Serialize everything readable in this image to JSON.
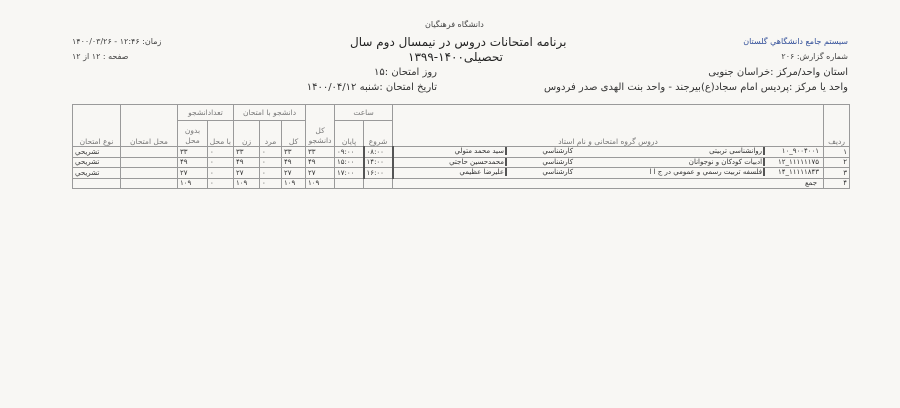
{
  "header": {
    "system_name": "سیستم جامع دانشگاهي گلستان",
    "report_number": "شماره گزارش: ۲۰۶",
    "university": "دانشگاه فرهنگیان",
    "title_line1": "برنامه امتحانات دروس در نیمسال دوم سال",
    "title_line2": "تحصیلی۱۴۰۰-۱۳۹۹",
    "time": "زمان: ۱۲:۴۶ - ۱۴۰۰/۰۳/۲۶",
    "page": "صفحه : ۱۲ از ۱۲",
    "province": "استان واحد/مرکز :خراسان جنوبی",
    "unit": "واحد یا مرکز :پردیس امام سجاد(ع)بیرجند - واحد بنت الهدی صدر فردوس",
    "exam_day": "روز امتحان :۱۵",
    "exam_date": "تاریخ امتحان :شنبه ۱۴۰۰/۰۴/۱۲"
  },
  "table": {
    "headers": {
      "row": "ردیف",
      "course": "دروس گروه امتحانی و نام استاد",
      "time_group": "ساعت",
      "start": "شروع",
      "end": "پایان",
      "total_students": "کل دانشجو",
      "with_exam_group": "دانشجو با امتحان",
      "total": "کل",
      "male": "مرد",
      "female": "زن",
      "count_group": "تعدادانشجو",
      "with_location": "با محل",
      "without_location": "بدون محل",
      "exam_location": "محل امتحان",
      "exam_type": "نوع امتحان"
    },
    "rows": [
      {
        "no": "۱",
        "code": "۹۰۰۴۰۰۱_۱۰",
        "course": "روانشناسی تربیتی",
        "degree": "کارشناسي",
        "instructor": "سید محمد متولي",
        "start": "۰۸:۰۰",
        "end": "۰۹:۰۰",
        "total_students": "۳۳",
        "total": "۳۳",
        "male": "۰",
        "female": "۳۳",
        "with_location": "۰",
        "without_location": "۳۳",
        "location": "",
        "type": "تشریحي"
      },
      {
        "no": "۲",
        "code": "۱۱۱۱۱۱۷۵_۱۲",
        "course": "ادبیات کودکان و نوجوانان",
        "degree": "کارشناسي",
        "instructor": "محمدحسین حاجتي",
        "start": "۱۴:۰۰",
        "end": "۱۵:۰۰",
        "total_students": "۴۹",
        "total": "۴۹",
        "male": "۰",
        "female": "۴۹",
        "with_location": "۰",
        "without_location": "۴۹",
        "location": "",
        "type": "تشریحي"
      },
      {
        "no": "۳",
        "code": "۱۱۱۱۱۸۴۳_۱۴",
        "course": "فلسفه تربیت رسمي و عمومي در ج ا ا",
        "degree": "کارشناسي",
        "instructor": "علیرضا عظیمي",
        "start": "۱۶:۰۰",
        "end": "۱۷:۰۰",
        "total_students": "۲۷",
        "total": "۲۷",
        "male": "۰",
        "female": "۲۷",
        "with_location": "۰",
        "without_location": "۲۷",
        "location": "",
        "type": "تشریحي"
      }
    ],
    "total_row": {
      "no": "۴",
      "label": "جمع",
      "total_students": "۱۰۹",
      "total": "۱۰۹",
      "male": "۰",
      "female": "۱۰۹",
      "with_location": "۰",
      "without_location": "۱۰۹"
    }
  }
}
